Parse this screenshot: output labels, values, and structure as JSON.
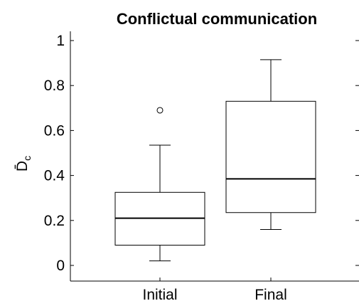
{
  "chart_data": {
    "type": "box",
    "title": "Conflictual communication",
    "ylabel": "D̄c",
    "ylabel_main": "D̄",
    "ylabel_sub": "c",
    "xlabel": "",
    "ylim": [
      0,
      1
    ],
    "yticks": [
      0,
      0.2,
      0.4,
      0.6,
      0.8,
      1
    ],
    "ytick_labels": [
      "0",
      "0.2",
      "0.4",
      "0.6",
      "0.8",
      "1"
    ],
    "categories": [
      "Initial",
      "Final"
    ],
    "boxes": [
      {
        "category": "Initial",
        "whisker_low": 0.02,
        "q1": 0.09,
        "median": 0.21,
        "q3": 0.325,
        "whisker_high": 0.535,
        "outliers": [
          0.69
        ]
      },
      {
        "category": "Final",
        "whisker_low": 0.16,
        "q1": 0.235,
        "median": 0.385,
        "q3": 0.73,
        "whisker_high": 0.915,
        "outliers": []
      }
    ],
    "grid": false,
    "colors": {
      "line": "#000000",
      "background": "#ffffff"
    }
  }
}
